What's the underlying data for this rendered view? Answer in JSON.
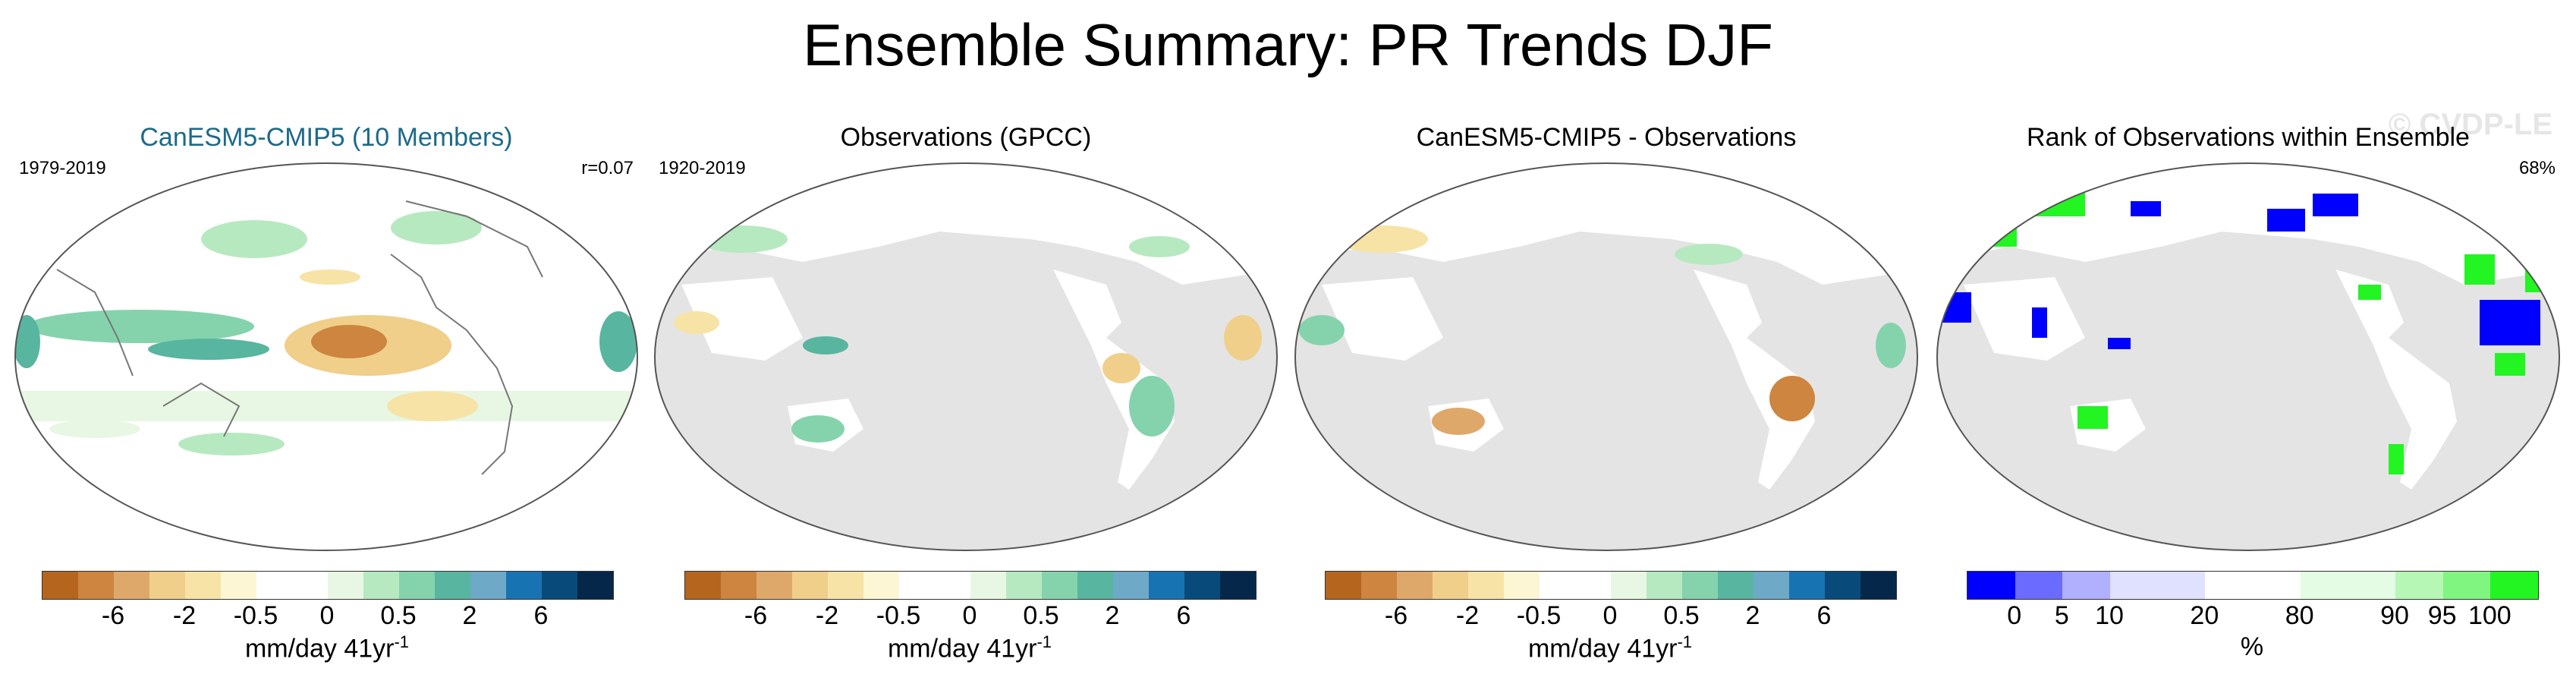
{
  "title": "Ensemble Summary: PR Trends DJF",
  "watermark": "© CVDP-LE",
  "panels": [
    {
      "title": "CanESM5-CMIP5 (10 Members)",
      "left_label": "1979-2019",
      "right_label": "r=0.07"
    },
    {
      "title": "Observations (GPCC)",
      "left_label": "1920-2019",
      "right_label": ""
    },
    {
      "title": "CanESM5-CMIP5 - Observations",
      "left_label": "",
      "right_label": ""
    },
    {
      "title": "Rank of Observations within Ensemble",
      "left_label": "",
      "right_label": "68%"
    }
  ],
  "colorbars": {
    "trend": {
      "colors": [
        "#b5651d",
        "#cd853f",
        "#dfa86b",
        "#f0cf8a",
        "#f7e3a6",
        "#fdf6d5",
        "#ffffff",
        "#ffffff",
        "#e8f7e3",
        "#b7e9c0",
        "#85d3ad",
        "#58b5a0",
        "#6ea9c7",
        "#1873b3",
        "#084b7a",
        "#05284a"
      ],
      "ticks": [
        "-6",
        "-2",
        "-0.5",
        "0",
        "0.5",
        "2",
        "6"
      ],
      "unit": "mm/day 41yr",
      "unit_sup": "-1"
    },
    "rank": {
      "colors": [
        "#0000ff",
        "#6b6bff",
        "#b0b0ff",
        "#e0e0ff",
        "#e0e0ff",
        "#ffffff",
        "#ffffff",
        "#e4fce4",
        "#e4fce4",
        "#b6f7b6",
        "#80f580",
        "#22f522"
      ],
      "ticks": [
        "0",
        "5",
        "10",
        "20",
        "80",
        "90",
        "95",
        "100"
      ],
      "unit": "%"
    }
  },
  "chart_data": [
    {
      "type": "heatmap",
      "title": "CanESM5-CMIP5 (10 Members)",
      "period": "1979-2019",
      "pattern_correlation": "r=0.07",
      "colorbar_ticks": [
        "-6",
        "-2",
        "-0.5",
        "0",
        "0.5",
        "2",
        "6"
      ],
      "units": "mm/day 41yr-1",
      "description_regions": {
        "tropical_pacific_central": "drying (~ -0.5 to -2)",
        "western_pacific_warm_pool": "wetting (~ 0.5 to 2)",
        "southern_ocean_band": "weak wetting (~0.5)"
      }
    },
    {
      "type": "heatmap",
      "title": "Observations (GPCC)",
      "period": "1920-2019",
      "colorbar_ticks": [
        "-6",
        "-2",
        "-0.5",
        "0",
        "0.5",
        "2",
        "6"
      ],
      "units": "mm/day 41yr-1",
      "ocean": "missing (gray)"
    },
    {
      "type": "heatmap",
      "title": "CanESM5-CMIP5 - Observations",
      "colorbar_ticks": [
        "-6",
        "-2",
        "-0.5",
        "0",
        "0.5",
        "2",
        "6"
      ],
      "units": "mm/day 41yr-1",
      "ocean": "missing (gray)"
    },
    {
      "type": "heatmap",
      "title": "Rank of Observations within Ensemble",
      "summary_percent": "68%",
      "colorbar_ticks": [
        "0",
        "5",
        "10",
        "20",
        "80",
        "90",
        "95",
        "100"
      ],
      "units": "%"
    }
  ]
}
